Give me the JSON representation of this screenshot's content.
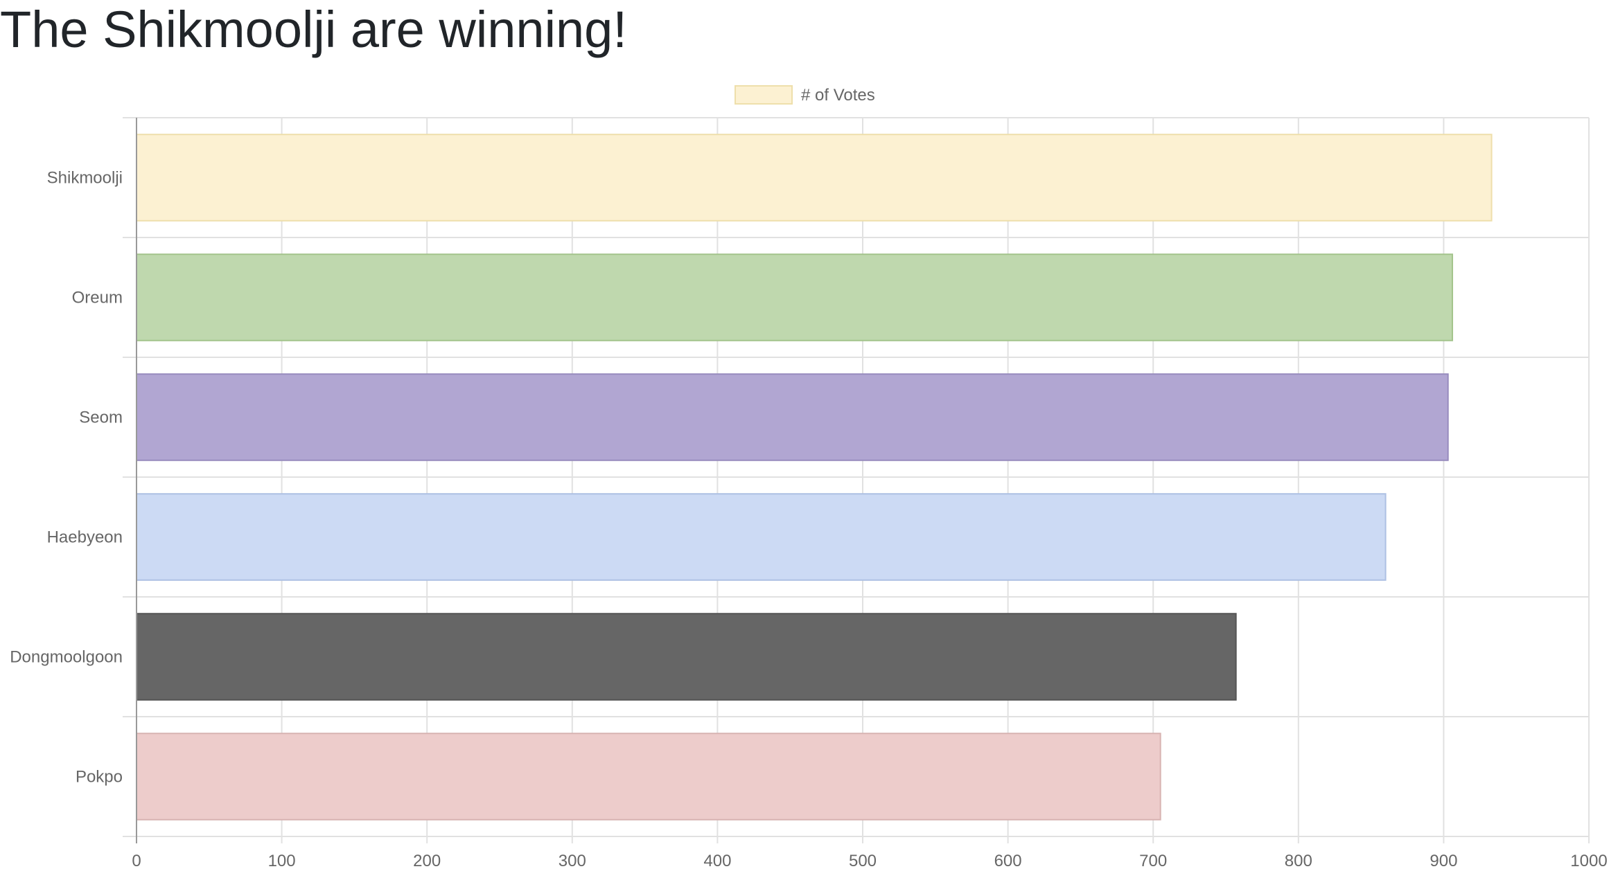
{
  "page": {
    "title": "The Shikmoolji are winning!"
  },
  "chart_data": {
    "type": "bar",
    "orientation": "horizontal",
    "categories": [
      "Shikmoolji",
      "Oreum",
      "Seom",
      "Haebyeon",
      "Dongmoolgoon",
      "Pokpo"
    ],
    "series": [
      {
        "name": "# of Votes",
        "values": [
          933,
          906,
          903,
          860,
          757,
          705
        ],
        "colors": [
          "#fcf1d2",
          "#bfd8ae",
          "#b1a6d2",
          "#ccdaf4",
          "#666666",
          "#edcccb"
        ],
        "border_colors": [
          "#eedfab",
          "#a3c48c",
          "#978bbd",
          "#adc0e3",
          "#555555",
          "#d8b3b2"
        ]
      }
    ],
    "xlim": [
      0,
      1000
    ],
    "x_ticks": [
      "0",
      "100",
      "200",
      "300",
      "400",
      "500",
      "600",
      "700",
      "800",
      "900",
      "1000"
    ],
    "grid": true,
    "legend_position": "top-center",
    "legend_swatch_color": "#fcf1d2",
    "legend_swatch_border": "#eedfab"
  }
}
